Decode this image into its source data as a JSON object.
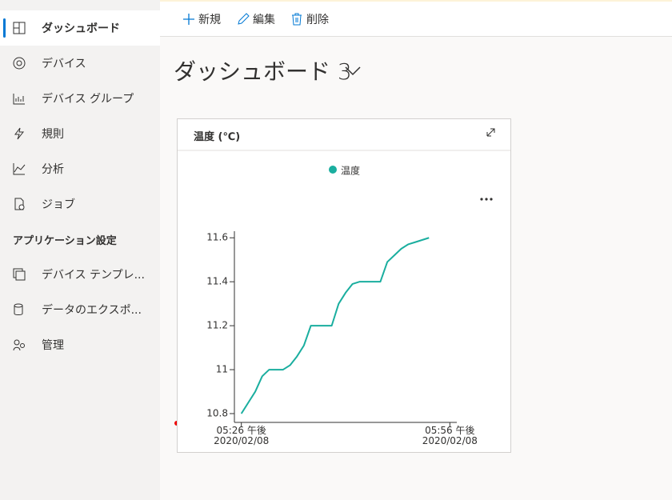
{
  "sidebar": {
    "items": [
      "ダッシュボード",
      "デバイス",
      "デバイス グループ",
      "規則",
      "分析",
      "ジョブ"
    ],
    "section_title": "アプリケーション設定",
    "settings_items": [
      "デバイス テンプレ...",
      "データのエクスポ...",
      "管理"
    ]
  },
  "toolbar": [
    "新規",
    "編集",
    "削除"
  ],
  "dashboard_title": "ダッシュボード 3",
  "chart_data": {
    "type": "line",
    "title": "温度 (℃)",
    "x": [
      "2020-02-08T17:26",
      "2020-02-08T17:27",
      "2020-02-08T17:28",
      "2020-02-08T17:29",
      "2020-02-08T17:30",
      "2020-02-08T17:31",
      "2020-02-08T17:32",
      "2020-02-08T17:33",
      "2020-02-08T17:34",
      "2020-02-08T17:35",
      "2020-02-08T17:36",
      "2020-02-08T17:37",
      "2020-02-08T17:38",
      "2020-02-08T17:39",
      "2020-02-08T17:40",
      "2020-02-08T17:41",
      "2020-02-08T17:42",
      "2020-02-08T17:43",
      "2020-02-08T17:44",
      "2020-02-08T17:45",
      "2020-02-08T17:46",
      "2020-02-08T17:47",
      "2020-02-08T17:48",
      "2020-02-08T17:49",
      "2020-02-08T17:50",
      "2020-02-08T17:51",
      "2020-02-08T17:52",
      "2020-02-08T17:53"
    ],
    "series": [
      {
        "name": "温度",
        "color": "#1aae9f",
        "values": [
          10.8,
          10.85,
          10.9,
          10.97,
          11.0,
          11.0,
          11.0,
          11.02,
          11.06,
          11.11,
          11.2,
          11.2,
          11.2,
          11.2,
          11.3,
          11.35,
          11.39,
          11.4,
          11.4,
          11.4,
          11.4,
          11.49,
          11.52,
          11.55,
          11.57,
          11.58,
          11.59,
          11.6
        ]
      }
    ],
    "xlim": [
      "2020-02-08T17:25",
      "2020-02-08T17:57"
    ],
    "xticks": [
      {
        "value": "2020-02-08T17:26",
        "label": "05:26 午後 2020/02/08"
      },
      {
        "value": "2020-02-08T17:56",
        "label": "05:56 午後 2020/02/08"
      }
    ],
    "ylim": [
      10.76,
      11.63
    ],
    "yticks": [
      10.8,
      11,
      11.2,
      11.4,
      11.6
    ]
  }
}
